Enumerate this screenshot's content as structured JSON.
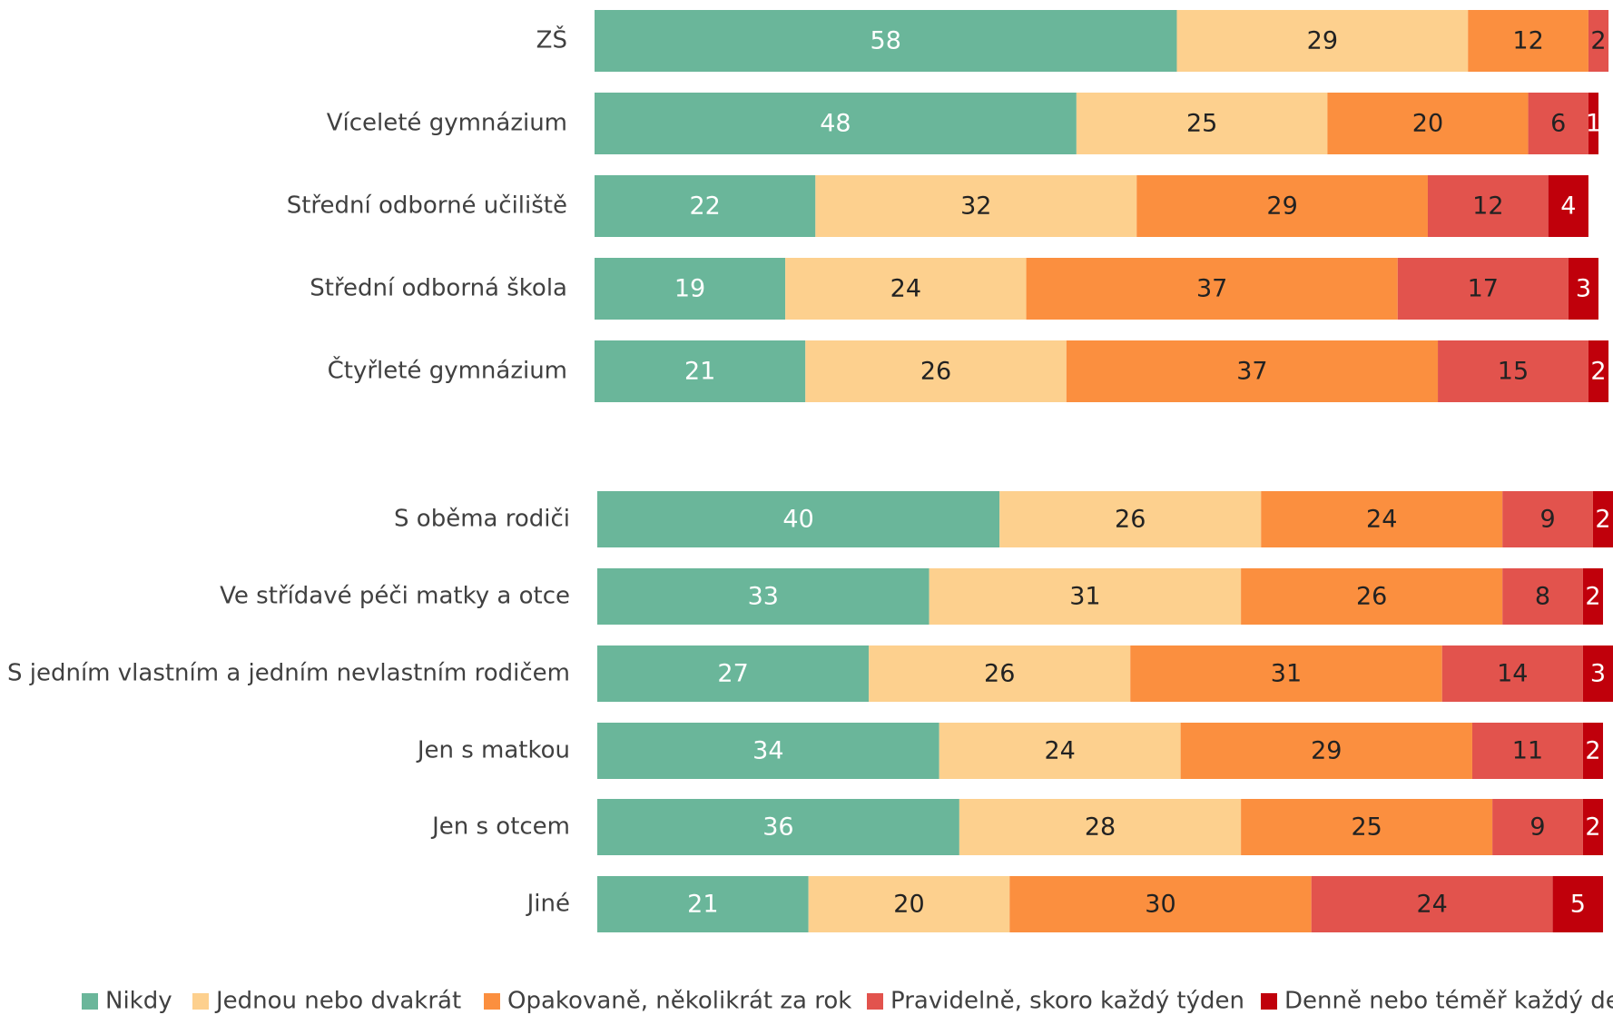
{
  "chart_data": [
    {
      "type": "bar",
      "orientation": "horizontal",
      "stacked": true,
      "categories": [
        "ZŠ",
        "Víceleté gymnázium",
        "Střední odborné učiliště",
        "Střední odborná škola",
        "Čtyřleté gymnázium"
      ],
      "series": [
        {
          "name": "Nikdy",
          "color": "#6ab69a",
          "values": [
            58,
            48,
            22,
            19,
            21
          ]
        },
        {
          "name": "Jednou nebo dvakrát",
          "color": "#fdd08e",
          "values": [
            29,
            25,
            32,
            24,
            26
          ]
        },
        {
          "name": "Opakovaně, několikrát za rok",
          "color": "#fb8f3f",
          "values": [
            12,
            20,
            29,
            37,
            37
          ]
        },
        {
          "name": "Pravidelně, skoro každý týden",
          "color": "#e2534d",
          "values": [
            2,
            6,
            12,
            17,
            15
          ]
        },
        {
          "name": "Denně nebo téměř každý den",
          "color": "#c0000b",
          "values": [
            0,
            1,
            4,
            3,
            2
          ]
        }
      ]
    },
    {
      "type": "bar",
      "orientation": "horizontal",
      "stacked": true,
      "categories": [
        "S oběma rodiči",
        "Ve střídavé péči matky a otce",
        "S jedním vlastním a jedním nevlastním rodičem",
        "Jen s matkou",
        "Jen s otcem",
        "Jiné"
      ],
      "series": [
        {
          "name": "Nikdy",
          "color": "#6ab69a",
          "values": [
            40,
            33,
            27,
            34,
            36,
            21
          ]
        },
        {
          "name": "Jednou nebo dvakrát",
          "color": "#fdd08e",
          "values": [
            26,
            31,
            26,
            24,
            28,
            20
          ]
        },
        {
          "name": "Opakovaně, několikrát za rok",
          "color": "#fb8f3f",
          "values": [
            24,
            26,
            31,
            29,
            25,
            30
          ]
        },
        {
          "name": "Pravidelně, skoro každý týden",
          "color": "#e2534d",
          "values": [
            9,
            8,
            14,
            11,
            9,
            24
          ]
        },
        {
          "name": "Denně nebo téměř každý den",
          "color": "#c0000b",
          "values": [
            2,
            2,
            3,
            2,
            2,
            5
          ]
        }
      ]
    }
  ]
}
